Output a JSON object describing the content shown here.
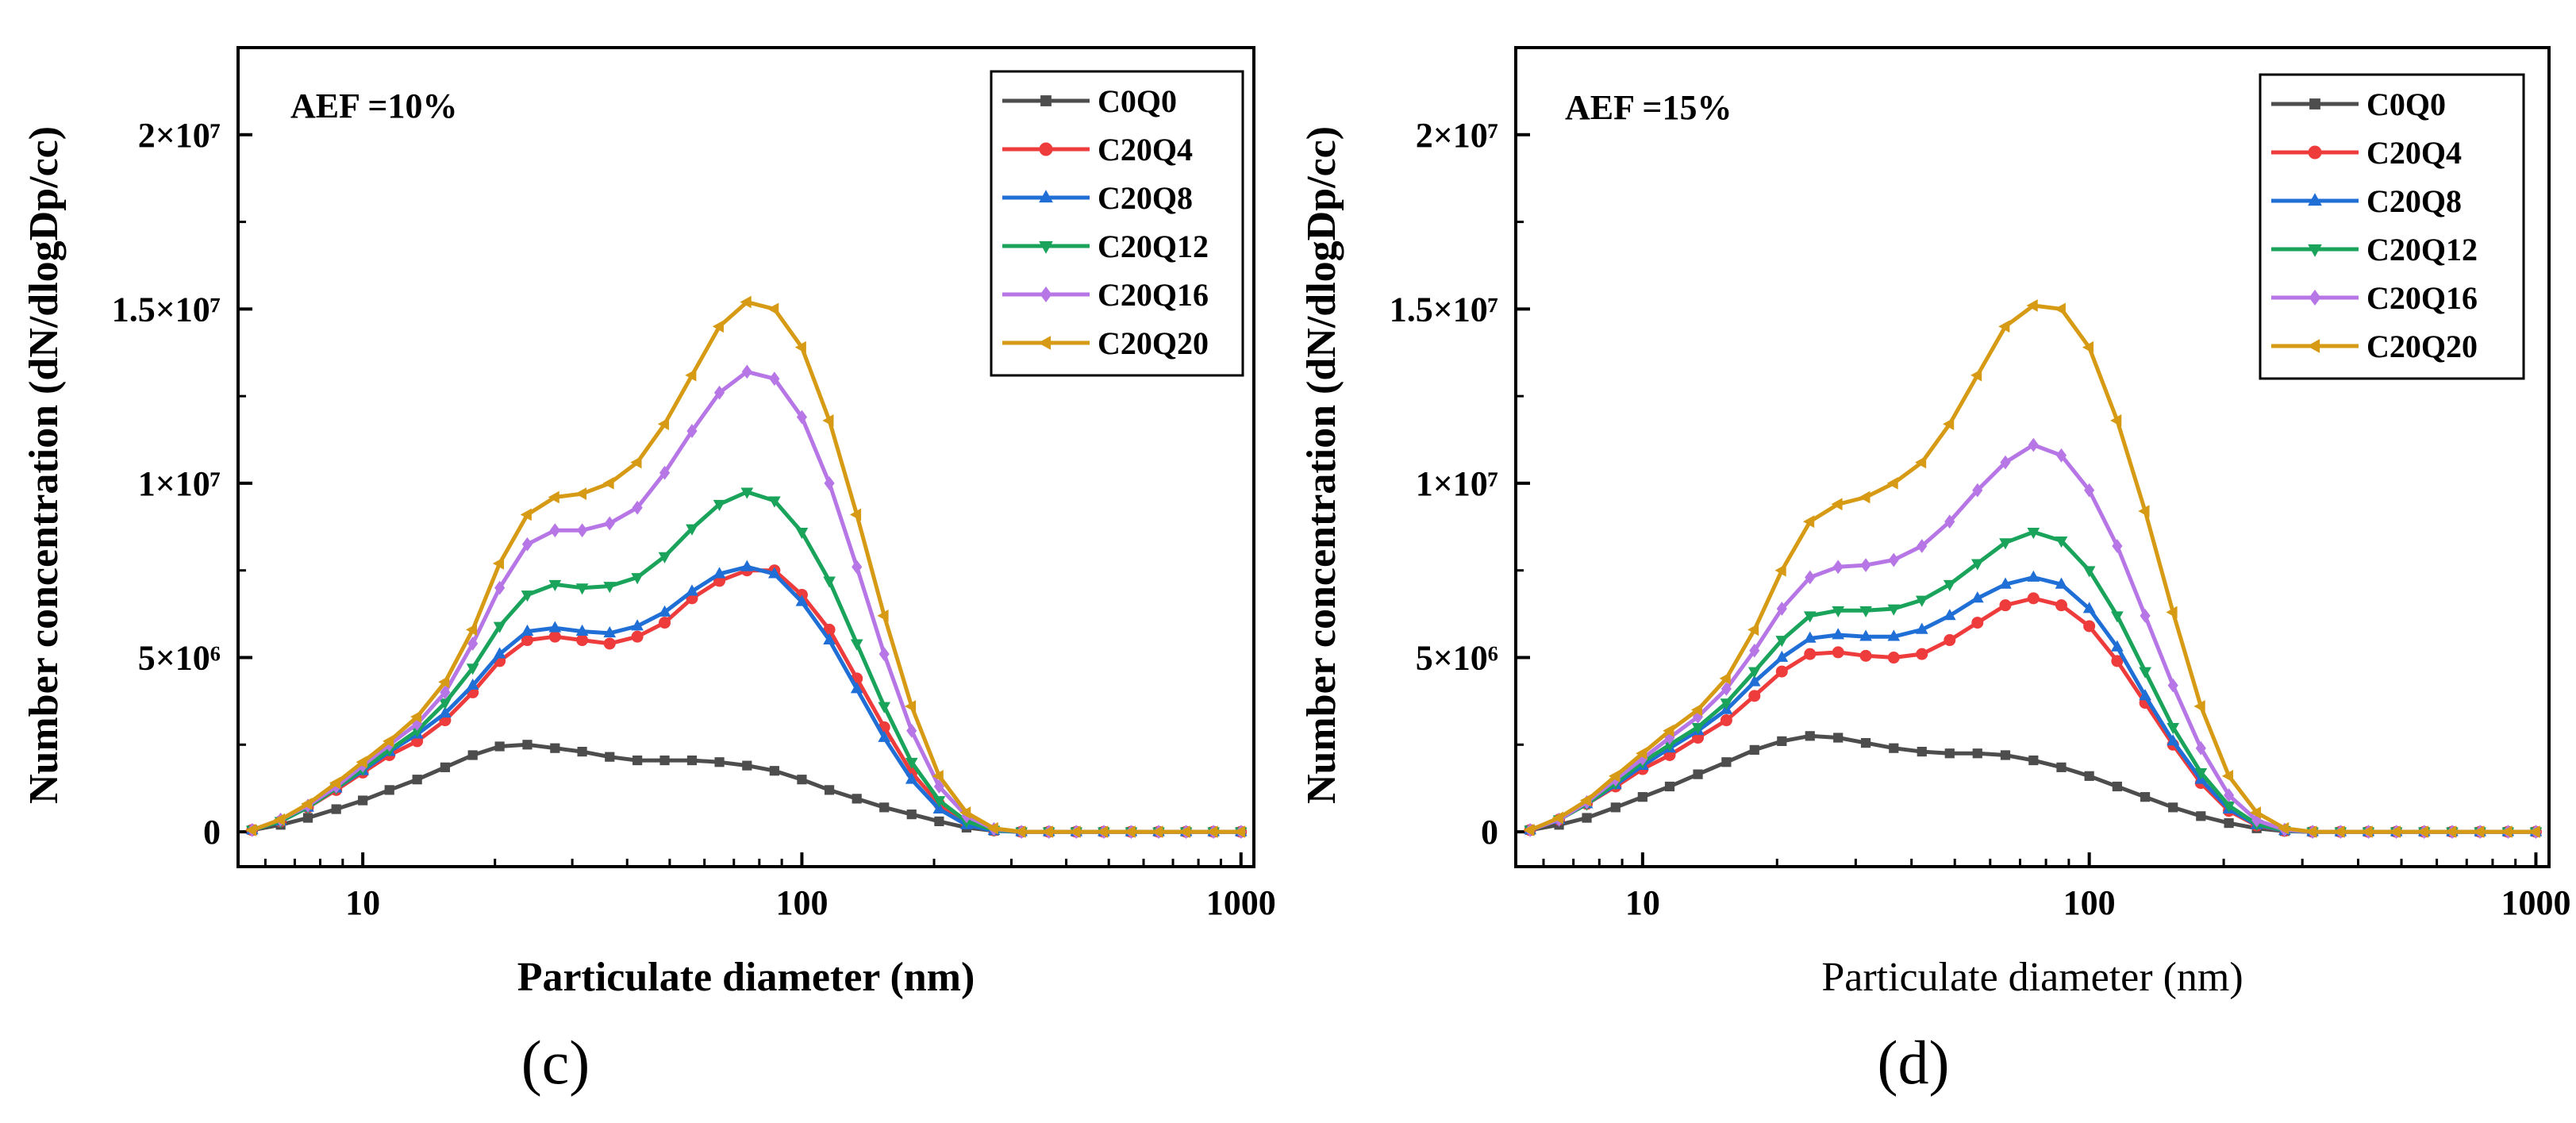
{
  "chart_data": [
    {
      "type": "line",
      "panel_label": "(c)",
      "annotation": "AEF =10%",
      "xlabel": "Particulate diameter (nm)",
      "xlabel_bold": true,
      "ylabel": "Number concentration (dN/dlogDp/cc)",
      "xscale": "log",
      "xlim": [
        5.2,
        1070
      ],
      "ylim": [
        -1000000,
        22500000
      ],
      "xticks": [
        {
          "value": 10,
          "label": "10"
        },
        {
          "value": 100,
          "label": "100"
        },
        {
          "value": 1000,
          "label": "1000"
        }
      ],
      "yticks": [
        {
          "value": 0,
          "label": "0"
        },
        {
          "value": 5000000,
          "label": "5×10⁶"
        },
        {
          "value": 10000000,
          "label": "1×10⁷"
        },
        {
          "value": 15000000,
          "label": "1.5×10⁷"
        },
        {
          "value": 20000000,
          "label": "2×10⁷"
        }
      ],
      "legend_position": "top-right",
      "x": [
        5.6,
        6.5,
        7.5,
        8.7,
        10,
        11.5,
        13.3,
        15.4,
        17.8,
        20.5,
        23.7,
        27.4,
        31.6,
        36.5,
        42.2,
        48.7,
        56.2,
        64.9,
        75,
        86.6,
        100,
        115.5,
        133.4,
        154,
        177.8,
        205.4,
        237.1,
        273.8,
        316.2,
        365.2,
        421.7,
        487,
        562.3,
        649.4,
        749.9,
        866,
        1000
      ],
      "series": [
        {
          "name": "C0Q0",
          "color": "#4d4d4d",
          "marker": "square",
          "values": [
            50000.0,
            200000.0,
            400000.0,
            650000.0,
            900000.0,
            1200000.0,
            1500000.0,
            1850000.0,
            2200000.0,
            2450000.0,
            2500000.0,
            2400000.0,
            2300000.0,
            2150000.0,
            2050000.0,
            2050000.0,
            2050000.0,
            2000000.0,
            1900000.0,
            1750000.0,
            1500000.0,
            1200000.0,
            950000.0,
            700000.0,
            500000.0,
            300000.0,
            120000.0,
            30000.0,
            0,
            0,
            0,
            0,
            0,
            0,
            0,
            0,
            0
          ]
        },
        {
          "name": "C20Q4",
          "color": "#ee3b3b",
          "marker": "circle",
          "values": [
            50000.0,
            300000.0,
            700000.0,
            1200000.0,
            1700000.0,
            2200000.0,
            2600000.0,
            3200000.0,
            4000000.0,
            4900000.0,
            5500000.0,
            5600000.0,
            5500000.0,
            5400000.0,
            5600000.0,
            6000000.0,
            6700000.0,
            7200000.0,
            7500000.0,
            7500000.0,
            6800000.0,
            5800000.0,
            4400000.0,
            3000000.0,
            1700000.0,
            800000.0,
            250000.0,
            40000.0,
            0,
            0,
            0,
            0,
            0,
            0,
            0,
            0,
            0
          ]
        },
        {
          "name": "C20Q8",
          "color": "#1f6fd6",
          "marker": "triangle-up",
          "values": [
            50000.0,
            300000.0,
            700000.0,
            1250000.0,
            1750000.0,
            2300000.0,
            2800000.0,
            3400000.0,
            4200000.0,
            5100000.0,
            5750000.0,
            5850000.0,
            5750000.0,
            5700000.0,
            5900000.0,
            6300000.0,
            6900000.0,
            7400000.0,
            7600000.0,
            7400000.0,
            6600000.0,
            5500000.0,
            4100000.0,
            2700000.0,
            1500000.0,
            650000.0,
            200000.0,
            30000.0,
            0,
            0,
            0,
            0,
            0,
            0,
            0,
            0,
            0
          ]
        },
        {
          "name": "C20Q12",
          "color": "#1aa35a",
          "marker": "triangle-down",
          "values": [
            50000.0,
            300000.0,
            700000.0,
            1250000.0,
            1800000.0,
            2350000.0,
            2900000.0,
            3700000.0,
            4700000.0,
            5900000.0,
            6800000.0,
            7100000.0,
            7000000.0,
            7050000.0,
            7300000.0,
            7900000.0,
            8700000.0,
            9400000.0,
            9750000.0,
            9500000.0,
            8600000.0,
            7200000.0,
            5400000.0,
            3600000.0,
            2000000.0,
            900000.0,
            300000.0,
            50000.0,
            0,
            0,
            0,
            0,
            0,
            0,
            0,
            0,
            0
          ]
        },
        {
          "name": "C20Q16",
          "color": "#b776e6",
          "marker": "diamond",
          "values": [
            50000.0,
            350000.0,
            750000.0,
            1300000.0,
            1900000.0,
            2500000.0,
            3100000.0,
            4000000.0,
            5400000.0,
            7000000.0,
            8250000.0,
            8650000.0,
            8650000.0,
            8850000.0,
            9300000.0,
            10300000.0,
            11500000.0,
            12600000.0,
            13200000.0,
            13000000.0,
            11900000.0,
            10000000.0,
            7600000.0,
            5100000.0,
            2900000.0,
            1300000.0,
            450000.0,
            80000.0,
            0,
            0,
            0,
            0,
            0,
            0,
            0,
            0,
            0
          ]
        },
        {
          "name": "C20Q20",
          "color": "#d69a14",
          "marker": "triangle-left",
          "values": [
            50000.0,
            350000.0,
            800000.0,
            1400000.0,
            2000000.0,
            2600000.0,
            3300000.0,
            4300000.0,
            5800000.0,
            7700000.0,
            9100000.0,
            9600000.0,
            9700000.0,
            10000000.0,
            10600000.0,
            11700000.0,
            13100000.0,
            14500000.0,
            15200000.0,
            15000000.0,
            13900000.0,
            11800000.0,
            9100000.0,
            6200000.0,
            3600000.0,
            1600000.0,
            550000.0,
            100000.0,
            0,
            0,
            0,
            0,
            0,
            0,
            0,
            0,
            0
          ]
        }
      ]
    },
    {
      "type": "line",
      "panel_label": "(d)",
      "annotation": "AEF =15%",
      "xlabel": "Particulate diameter (nm)",
      "xlabel_bold": false,
      "ylabel": "Number concentration (dN/dlogDp/cc)",
      "xscale": "log",
      "xlim": [
        5.2,
        1070
      ],
      "ylim": [
        -1000000,
        22500000
      ],
      "xticks": [
        {
          "value": 10,
          "label": "10"
        },
        {
          "value": 100,
          "label": "100"
        },
        {
          "value": 1000,
          "label": "1000"
        }
      ],
      "yticks": [
        {
          "value": 0,
          "label": "0"
        },
        {
          "value": 5000000,
          "label": "5×10⁶"
        },
        {
          "value": 10000000,
          "label": "1×10⁷"
        },
        {
          "value": 15000000,
          "label": "1.5×10⁷"
        },
        {
          "value": 20000000,
          "label": "2×10⁷"
        }
      ],
      "legend_position": "top-right",
      "x": [
        5.6,
        6.5,
        7.5,
        8.7,
        10,
        11.5,
        13.3,
        15.4,
        17.8,
        20.5,
        23.7,
        27.4,
        31.6,
        36.5,
        42.2,
        48.7,
        56.2,
        64.9,
        75,
        86.6,
        100,
        115.5,
        133.4,
        154,
        177.8,
        205.4,
        237.1,
        273.8,
        316.2,
        365.2,
        421.7,
        487,
        562.3,
        649.4,
        749.9,
        866,
        1000
      ],
      "series": [
        {
          "name": "C0Q0",
          "color": "#4d4d4d",
          "marker": "square",
          "values": [
            50000.0,
            200000.0,
            400000.0,
            700000.0,
            1000000.0,
            1300000.0,
            1650000.0,
            2000000.0,
            2350000.0,
            2600000.0,
            2750000.0,
            2700000.0,
            2550000.0,
            2400000.0,
            2300000.0,
            2250000.0,
            2250000.0,
            2200000.0,
            2050000.0,
            1850000.0,
            1600000.0,
            1300000.0,
            1000000.0,
            700000.0,
            450000.0,
            250000.0,
            100000.0,
            20000.0,
            0,
            0,
            0,
            0,
            0,
            0,
            0,
            0,
            0
          ]
        },
        {
          "name": "C20Q4",
          "color": "#ee3b3b",
          "marker": "circle",
          "values": [
            50000.0,
            350000.0,
            800000.0,
            1300000.0,
            1800000.0,
            2200000.0,
            2700000.0,
            3200000.0,
            3900000.0,
            4600000.0,
            5100000.0,
            5150000.0,
            5050000.0,
            5000000.0,
            5100000.0,
            5500000.0,
            6000000.0,
            6500000.0,
            6700000.0,
            6500000.0,
            5900000.0,
            4900000.0,
            3700000.0,
            2500000.0,
            1400000.0,
            600000.0,
            180000.0,
            30000.0,
            0,
            0,
            0,
            0,
            0,
            0,
            0,
            0,
            0
          ]
        },
        {
          "name": "C20Q8",
          "color": "#1f6fd6",
          "marker": "triangle-up",
          "values": [
            50000.0,
            350000.0,
            800000.0,
            1350000.0,
            1900000.0,
            2400000.0,
            2900000.0,
            3500000.0,
            4300000.0,
            5000000.0,
            5550000.0,
            5650000.0,
            5600000.0,
            5600000.0,
            5800000.0,
            6200000.0,
            6700000.0,
            7100000.0,
            7300000.0,
            7100000.0,
            6400000.0,
            5300000.0,
            3900000.0,
            2600000.0,
            1500000.0,
            650000.0,
            200000.0,
            30000.0,
            0,
            0,
            0,
            0,
            0,
            0,
            0,
            0,
            0
          ]
        },
        {
          "name": "C20Q12",
          "color": "#1aa35a",
          "marker": "triangle-down",
          "values": [
            50000.0,
            350000.0,
            800000.0,
            1400000.0,
            2000000.0,
            2500000.0,
            3000000.0,
            3700000.0,
            4600000.0,
            5500000.0,
            6200000.0,
            6350000.0,
            6350000.0,
            6400000.0,
            6650000.0,
            7100000.0,
            7700000.0,
            8300000.0,
            8600000.0,
            8350000.0,
            7500000.0,
            6200000.0,
            4600000.0,
            3000000.0,
            1700000.0,
            750000.0,
            220000.0,
            40000.0,
            0,
            0,
            0,
            0,
            0,
            0,
            0,
            0,
            0
          ]
        },
        {
          "name": "C20Q16",
          "color": "#b776e6",
          "marker": "diamond",
          "values": [
            50000.0,
            350000.0,
            850000.0,
            1500000.0,
            2100000.0,
            2700000.0,
            3300000.0,
            4100000.0,
            5200000.0,
            6400000.0,
            7300000.0,
            7600000.0,
            7650000.0,
            7800000.0,
            8200000.0,
            8900000.0,
            9800000.0,
            10600000.0,
            11100000.0,
            10800000.0,
            9800000.0,
            8200000.0,
            6200000.0,
            4200000.0,
            2400000.0,
            1050000.0,
            330000.0,
            60000.0,
            0,
            0,
            0,
            0,
            0,
            0,
            0,
            0,
            0
          ]
        },
        {
          "name": "C20Q20",
          "color": "#d69a14",
          "marker": "triangle-left",
          "values": [
            50000.0,
            400000.0,
            900000.0,
            1600000.0,
            2250000.0,
            2900000.0,
            3500000.0,
            4400000.0,
            5800000.0,
            7500000.0,
            8900000.0,
            9400000.0,
            9600000.0,
            10000000.0,
            10600000.0,
            11700000.0,
            13100000.0,
            14500000.0,
            15100000.0,
            15000000.0,
            13900000.0,
            11800000.0,
            9200000.0,
            6300000.0,
            3600000.0,
            1600000.0,
            550000.0,
            100000.0,
            0,
            0,
            0,
            0,
            0,
            0,
            0,
            0,
            0
          ]
        }
      ]
    }
  ]
}
